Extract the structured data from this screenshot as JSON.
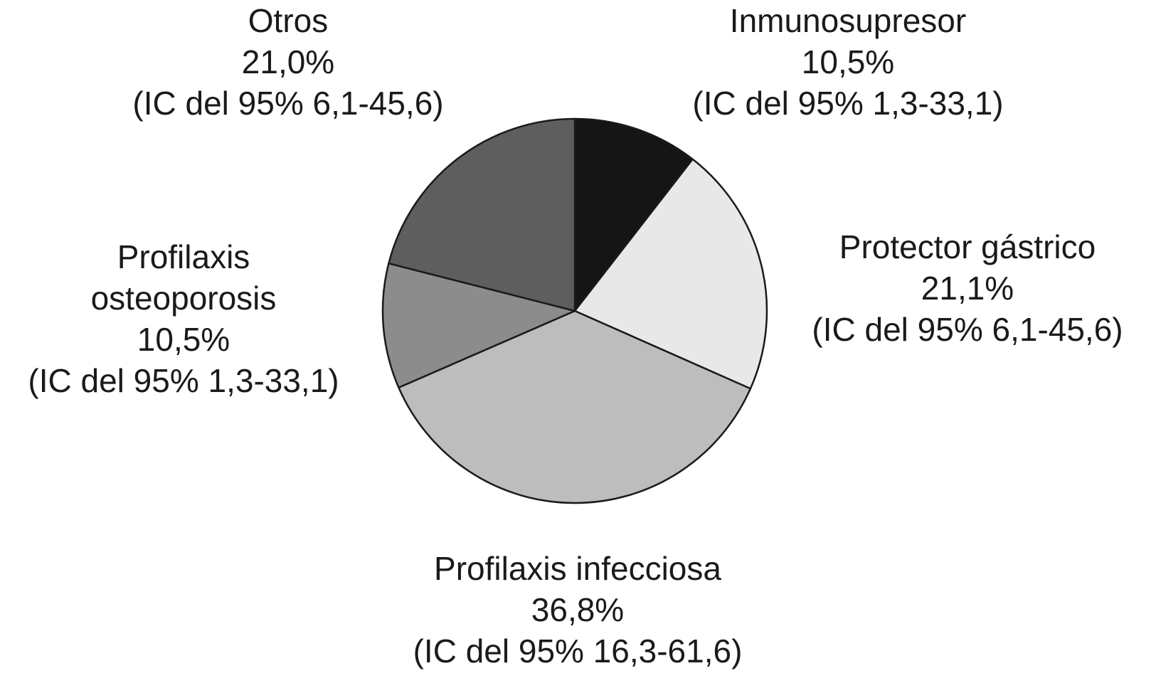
{
  "chart_data": {
    "type": "pie",
    "title": "",
    "slices": [
      {
        "label": "Inmunosupresor",
        "value": 10.5,
        "value_label": "10,5%",
        "ci_label": "(IC del 95% 1,3-33,1)",
        "color": "#151515"
      },
      {
        "label": "Protector gástrico",
        "value": 21.1,
        "value_label": "21,1%",
        "ci_label": "(IC del 95% 6,1-45,6)",
        "color": "#e8e8e8"
      },
      {
        "label": "Profilaxis infecciosa",
        "value": 36.8,
        "value_label": "36,8%",
        "ci_label": "(IC del 95% 16,3-61,6)",
        "color": "#bdbdbd"
      },
      {
        "label": "Profilaxis osteoporosis",
        "value": 10.5,
        "value_label": "10,5%",
        "ci_label": "(IC del 95% 1,3-33,1)",
        "color": "#8c8c8c"
      },
      {
        "label": "Otros",
        "value": 21.0,
        "value_label": "21,0%",
        "ci_label": "(IC del 95% 6,1-45,6)",
        "color": "#5e5e5e"
      }
    ],
    "start_position": "top",
    "direction": "clockwise",
    "legend": "none"
  }
}
